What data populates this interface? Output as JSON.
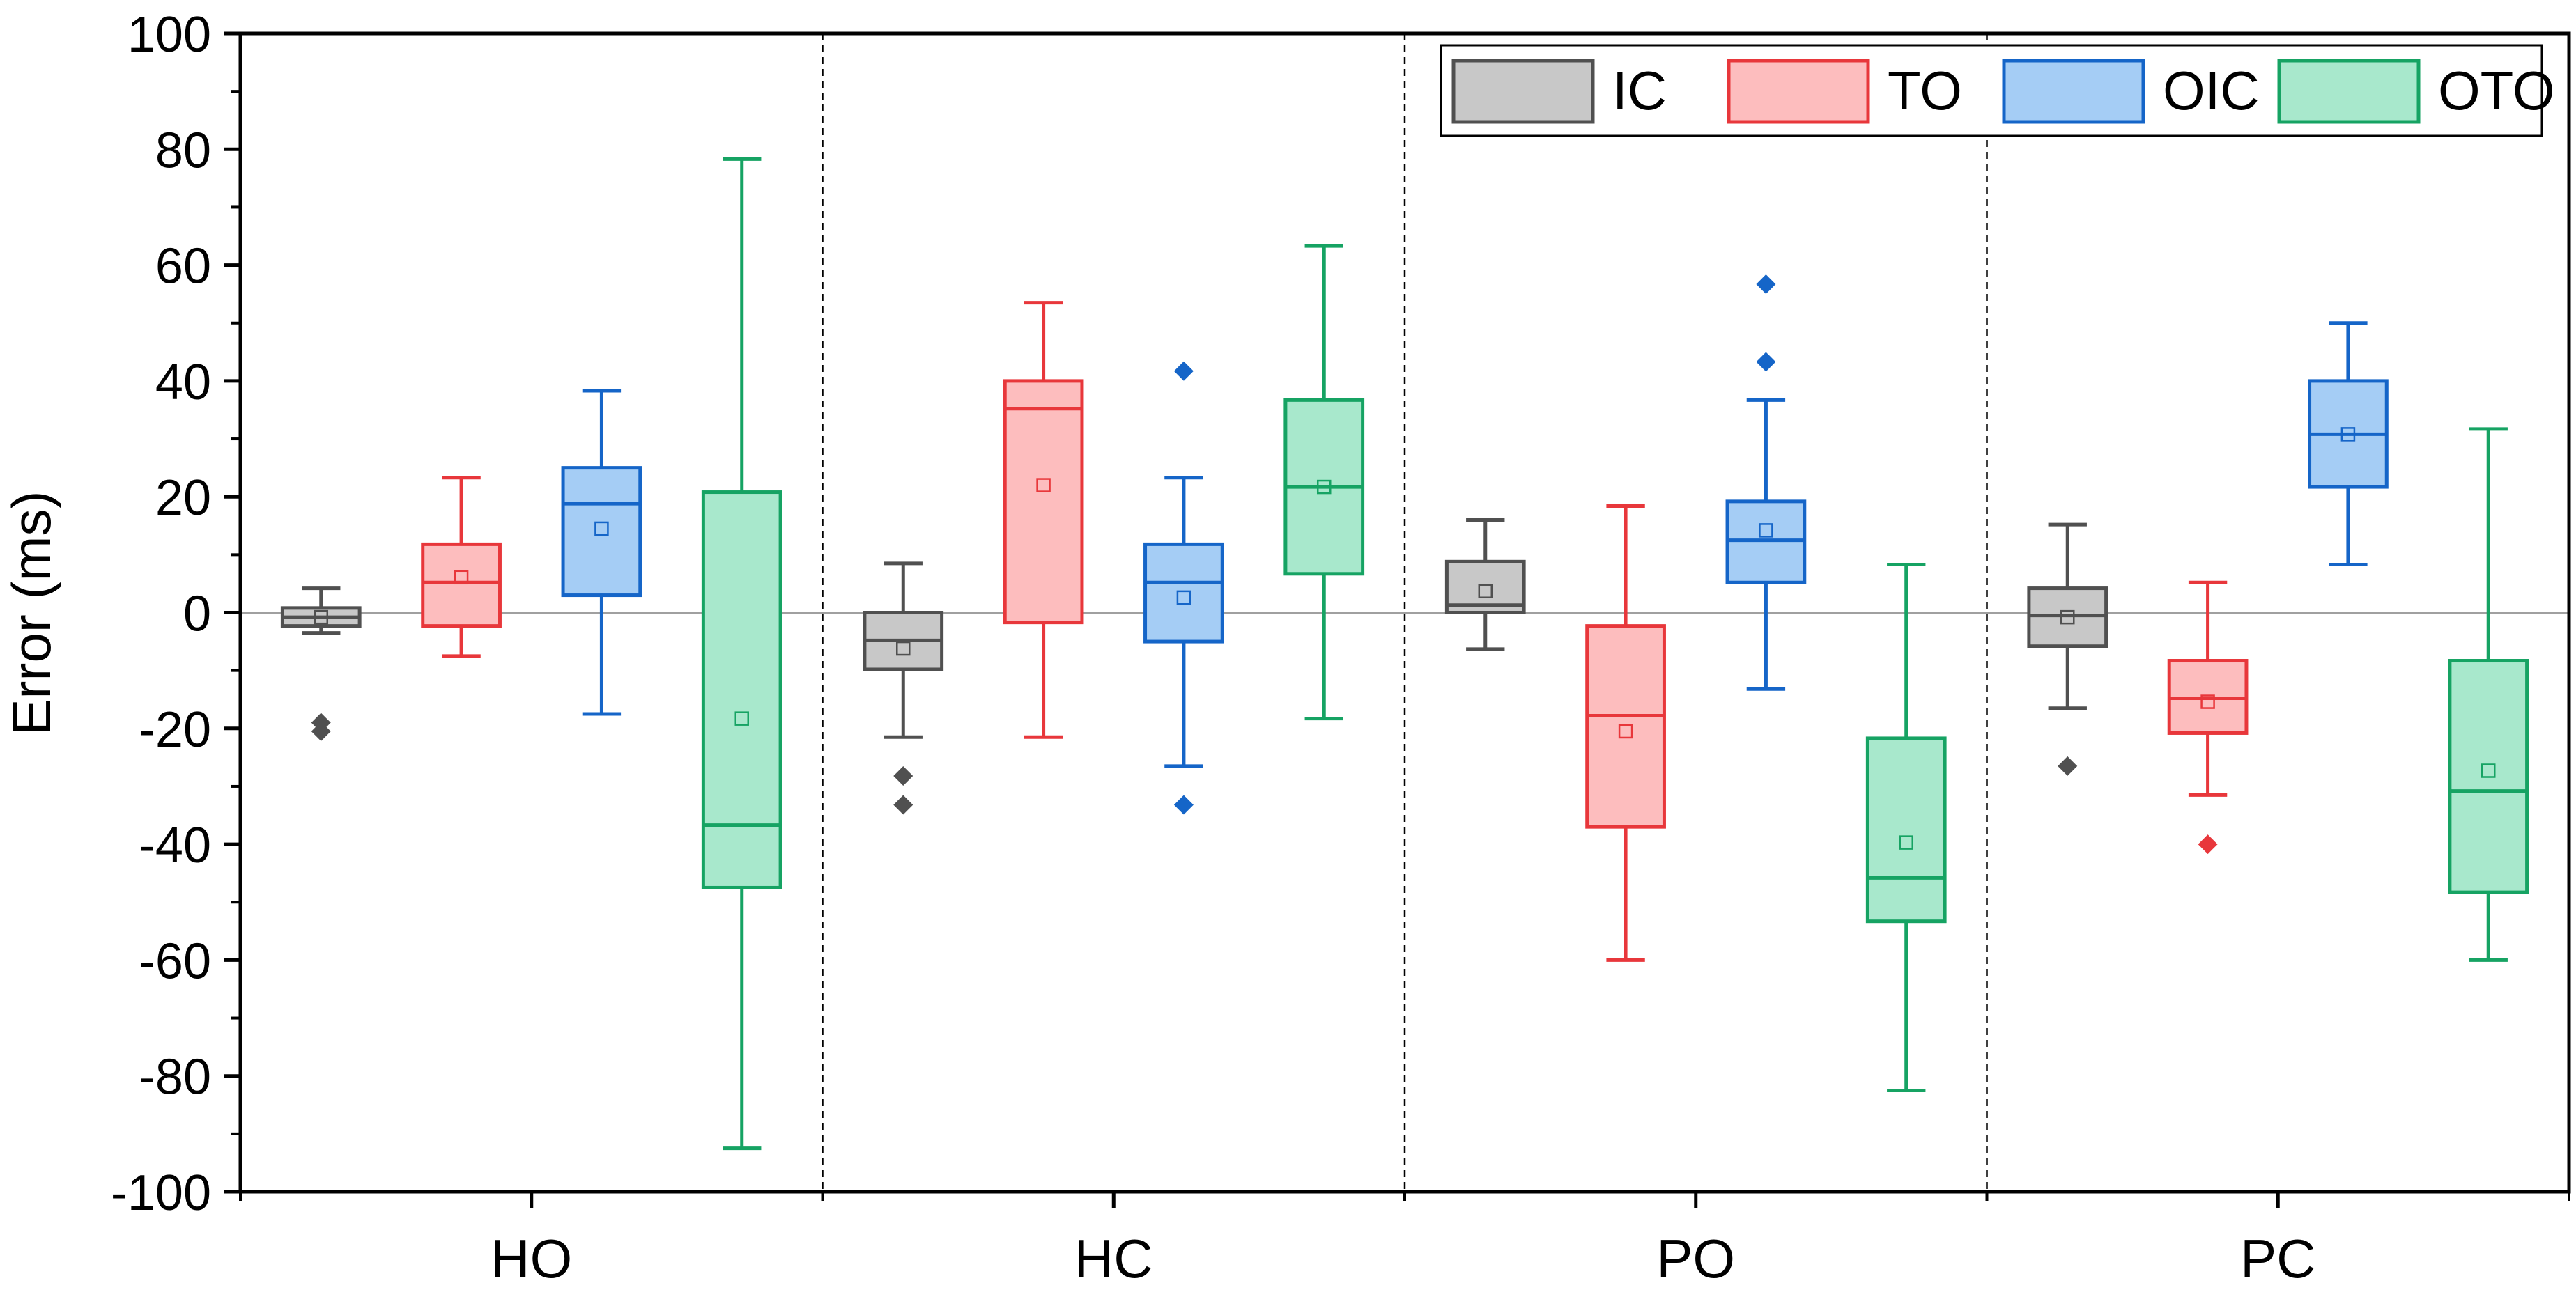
{
  "chart_data": {
    "type": "box",
    "title": "",
    "xlabel": "",
    "ylabel": "Error (ms)",
    "ylim": [
      -100,
      100
    ],
    "yticks": [
      -100,
      -80,
      -60,
      -40,
      -20,
      0,
      20,
      40,
      60,
      80,
      100
    ],
    "categories": [
      "HO",
      "HC",
      "PO",
      "PC"
    ],
    "legend_position": "top-right",
    "zero_line": true,
    "category_separators": "dashed",
    "series": [
      {
        "name": "IC",
        "edge_color": "#505050",
        "fill_color": "#c8c8c8",
        "boxes": [
          {
            "min": -3.5,
            "q1": -2.3,
            "median": -0.8,
            "q3": 0.8,
            "max": 4.2,
            "mean": -0.8,
            "outliers": [
              -19,
              -20.5
            ]
          },
          {
            "min": -21.5,
            "q1": -9.8,
            "median": -4.8,
            "q3": 0,
            "max": 8.5,
            "mean": -6.2,
            "outliers": [
              -28.2,
              -33.2
            ]
          },
          {
            "min": -6.3,
            "q1": 0,
            "median": 1.3,
            "q3": 8.8,
            "max": 16,
            "mean": 3.7,
            "outliers": []
          },
          {
            "min": -16.5,
            "q1": -5.8,
            "median": -0.5,
            "q3": 4.2,
            "max": 15.2,
            "mean": -0.8,
            "outliers": [
              -26.5
            ]
          }
        ]
      },
      {
        "name": "TO",
        "edge_color": "#e8373b",
        "fill_color": "#fdbdbe",
        "boxes": [
          {
            "min": -7.5,
            "q1": -2.3,
            "median": 5.2,
            "q3": 11.8,
            "max": 23.3,
            "mean": 6.1,
            "outliers": []
          },
          {
            "min": -21.5,
            "q1": -1.7,
            "median": 35.2,
            "q3": 40,
            "max": 53.5,
            "mean": 22,
            "outliers": []
          },
          {
            "min": -60,
            "q1": -37,
            "median": -17.8,
            "q3": -2.3,
            "max": 18.4,
            "mean": -20.5,
            "outliers": []
          },
          {
            "min": -31.5,
            "q1": -20.8,
            "median": -14.8,
            "q3": -8.3,
            "max": 5.2,
            "mean": -15.4,
            "outliers": [
              -40
            ]
          }
        ]
      },
      {
        "name": "OIC",
        "edge_color": "#1565c8",
        "fill_color": "#a5cdf5",
        "boxes": [
          {
            "min": -17.5,
            "q1": 3,
            "median": 18.8,
            "q3": 25,
            "max": 38.3,
            "mean": 14.5,
            "outliers": []
          },
          {
            "min": -26.5,
            "q1": -5,
            "median": 5.2,
            "q3": 11.8,
            "max": 23.3,
            "mean": 2.6,
            "outliers": [
              41.7,
              -33.2
            ]
          },
          {
            "min": -13.2,
            "q1": 5.2,
            "median": 12.5,
            "q3": 19.2,
            "max": 36.7,
            "mean": 14.2,
            "outliers": [
              56.7,
              43.3
            ]
          },
          {
            "min": 8.3,
            "q1": 21.7,
            "median": 30.8,
            "q3": 40,
            "max": 50,
            "mean": 30.8,
            "outliers": []
          }
        ]
      },
      {
        "name": "OTO",
        "edge_color": "#16a363",
        "fill_color": "#a8e8cc",
        "boxes": [
          {
            "min": -92.5,
            "q1": -47.5,
            "median": -36.7,
            "q3": 20.8,
            "max": 78.3,
            "mean": -18.3,
            "outliers": []
          },
          {
            "min": -18.3,
            "q1": 6.7,
            "median": 21.7,
            "q3": 36.7,
            "max": 63.3,
            "mean": 21.7,
            "outliers": []
          },
          {
            "min": -82.5,
            "q1": -53.3,
            "median": -45.8,
            "q3": -21.7,
            "max": 8.3,
            "mean": -39.7,
            "outliers": []
          },
          {
            "min": -60,
            "q1": -48.3,
            "median": -30.8,
            "q3": -8.3,
            "max": 31.7,
            "mean": -27.3,
            "outliers": []
          }
        ]
      }
    ]
  }
}
